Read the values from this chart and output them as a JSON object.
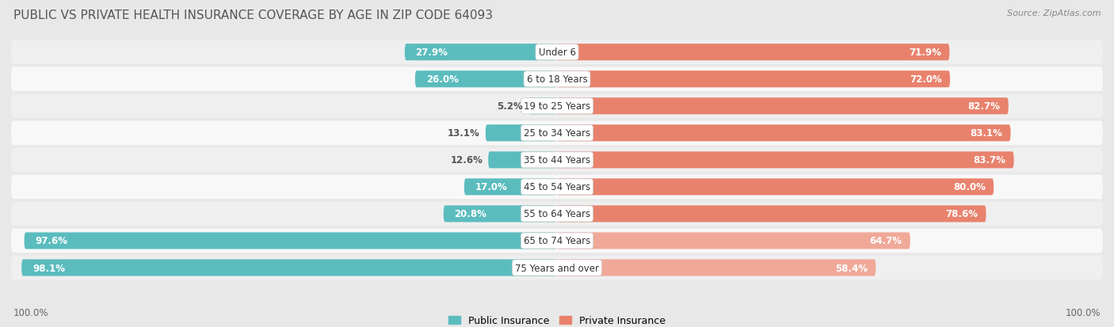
{
  "title": "PUBLIC VS PRIVATE HEALTH INSURANCE COVERAGE BY AGE IN ZIP CODE 64093",
  "source": "Source: ZipAtlas.com",
  "categories": [
    "Under 6",
    "6 to 18 Years",
    "19 to 25 Years",
    "25 to 34 Years",
    "35 to 44 Years",
    "45 to 54 Years",
    "55 to 64 Years",
    "65 to 74 Years",
    "75 Years and over"
  ],
  "public_values": [
    27.9,
    26.0,
    5.2,
    13.1,
    12.6,
    17.0,
    20.8,
    97.6,
    98.1
  ],
  "private_values": [
    71.9,
    72.0,
    82.7,
    83.1,
    83.7,
    80.0,
    78.6,
    64.7,
    58.4
  ],
  "public_color": "#5bbcbe",
  "private_color": "#e8826d",
  "private_color_light": "#f0a898",
  "background_color": "#e8e8e8",
  "row_colors": [
    "#ebebeb",
    "#f5f5f5"
  ],
  "bar_height": 0.62,
  "title_fontsize": 11,
  "value_fontsize": 8.5,
  "cat_fontsize": 8.5,
  "legend_label_public": "Public Insurance",
  "legend_label_private": "Private Insurance",
  "bottom_label": "100.0%"
}
